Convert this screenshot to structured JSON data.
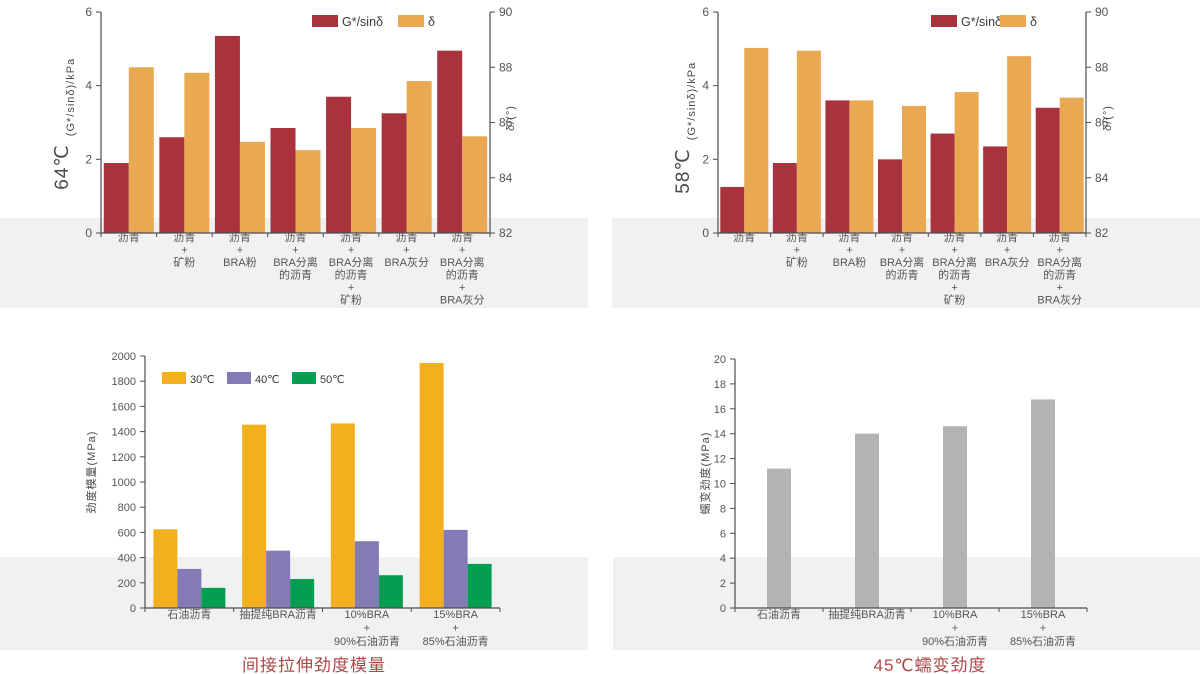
{
  "colors": {
    "red": "#A8333D",
    "orange": "#E9A852",
    "yellow": "#F2B01E",
    "purple": "#837AB6",
    "green": "#049E50",
    "grayBar": "#B3B3B3",
    "axis": "#4d4d4d",
    "tick_text": "#555555",
    "label_text": "#4a4a4a",
    "legend_text": "#3a3a3a",
    "title_red": "#ae4747",
    "band": "#f1f1f2"
  },
  "chart_data": [
    {
      "id": "dsr-64",
      "type": "bar",
      "temperature": "64℃",
      "left_axis": {
        "label": "(G*/sinδ)/kPa",
        "min": 0,
        "max": 6,
        "ticks": [
          0,
          2,
          4,
          6
        ]
      },
      "right_axis": {
        "label": "δ/(°)",
        "min": 82,
        "max": 90,
        "ticks": [
          82,
          84,
          86,
          88,
          90
        ]
      },
      "legend": [
        "G*/sinδ",
        "δ"
      ],
      "categories": [
        [
          "沥青"
        ],
        [
          "沥青",
          "+",
          "矿粉"
        ],
        [
          "沥青",
          "+",
          "BRA粉"
        ],
        [
          "沥青",
          "+",
          "BRA分离",
          "的沥青"
        ],
        [
          "沥青",
          "+",
          "BRA分离",
          "的沥青",
          "+",
          "矿粉"
        ],
        [
          "沥青",
          "+",
          "BRA灰分"
        ],
        [
          "沥青",
          "+",
          "BRA分离",
          "的沥青",
          "+",
          "BRA灰分"
        ]
      ],
      "series": [
        {
          "name": "G*/sinδ",
          "axis": "left",
          "color": "red",
          "values": [
            1.9,
            2.6,
            5.35,
            2.85,
            3.7,
            3.25,
            4.95
          ]
        },
        {
          "name": "δ",
          "axis": "right",
          "color": "orange",
          "values": [
            88.0,
            87.8,
            85.3,
            85.0,
            85.8,
            87.5,
            85.5
          ]
        }
      ]
    },
    {
      "id": "dsr-58",
      "type": "bar",
      "temperature": "58℃",
      "left_axis": {
        "label": "(G*/sinδ)/kPa",
        "min": 0,
        "max": 6,
        "ticks": [
          0,
          2,
          4,
          6
        ]
      },
      "right_axis": {
        "label": "δ/(°)",
        "min": 82,
        "max": 90,
        "ticks": [
          82,
          84,
          86,
          88,
          90
        ]
      },
      "legend": [
        "G*/sinδ",
        "δ"
      ],
      "categories": [
        [
          "沥青"
        ],
        [
          "沥青",
          "+",
          "矿粉"
        ],
        [
          "沥青",
          "+",
          "BRA粉"
        ],
        [
          "沥青",
          "+",
          "BRA分离",
          "的沥青"
        ],
        [
          "沥青",
          "+",
          "BRA分离",
          "的沥青",
          "+",
          "矿粉"
        ],
        [
          "沥青",
          "+",
          "BRA灰分"
        ],
        [
          "沥青",
          "+",
          "BRA分离",
          "的沥青",
          "+",
          "BRA灰分"
        ]
      ],
      "series": [
        {
          "name": "G*/sinδ",
          "axis": "left",
          "color": "red",
          "values": [
            1.25,
            1.9,
            3.6,
            2.0,
            2.7,
            2.35,
            3.4
          ]
        },
        {
          "name": "δ",
          "axis": "right",
          "color": "orange",
          "values": [
            88.7,
            88.6,
            86.8,
            86.6,
            87.1,
            88.4,
            86.9
          ]
        }
      ]
    },
    {
      "id": "stiffness-modulus",
      "type": "bar",
      "title": "间接拉伸劲度模量",
      "y_axis": {
        "label": "劲度模量(MPa)",
        "min": 0,
        "max": 2000,
        "tick_step": 200
      },
      "legend": [
        "30℃",
        "40℃",
        "50℃"
      ],
      "categories": [
        [
          "石油沥青"
        ],
        [
          "抽提纯BRA沥青"
        ],
        [
          "10%BRA",
          "+",
          "90%石油沥青"
        ],
        [
          "15%BRA",
          "+",
          "85%石油沥青"
        ]
      ],
      "series": [
        {
          "name": "30℃",
          "color": "yellow",
          "values": [
            625,
            1455,
            1465,
            1945
          ]
        },
        {
          "name": "40℃",
          "color": "purple",
          "values": [
            310,
            455,
            530,
            620
          ]
        },
        {
          "name": "50℃",
          "color": "green",
          "values": [
            160,
            230,
            260,
            350
          ]
        }
      ]
    },
    {
      "id": "creep-stiffness",
      "type": "bar",
      "title": "45℃蠕变劲度",
      "y_axis": {
        "label": "蠕变劲度(MPa)",
        "min": 0,
        "max": 20,
        "tick_step": 2
      },
      "legend": [],
      "categories": [
        [
          "石油沥青"
        ],
        [
          "抽提纯BRA沥青"
        ],
        [
          "10%BRA",
          "+",
          "90%石油沥青"
        ],
        [
          "15%BRA",
          "+",
          "85%石油沥青"
        ]
      ],
      "series": [
        {
          "name": "蠕变劲度",
          "color": "grayBar",
          "values": [
            11.2,
            14.0,
            14.6,
            16.75
          ]
        }
      ]
    }
  ]
}
